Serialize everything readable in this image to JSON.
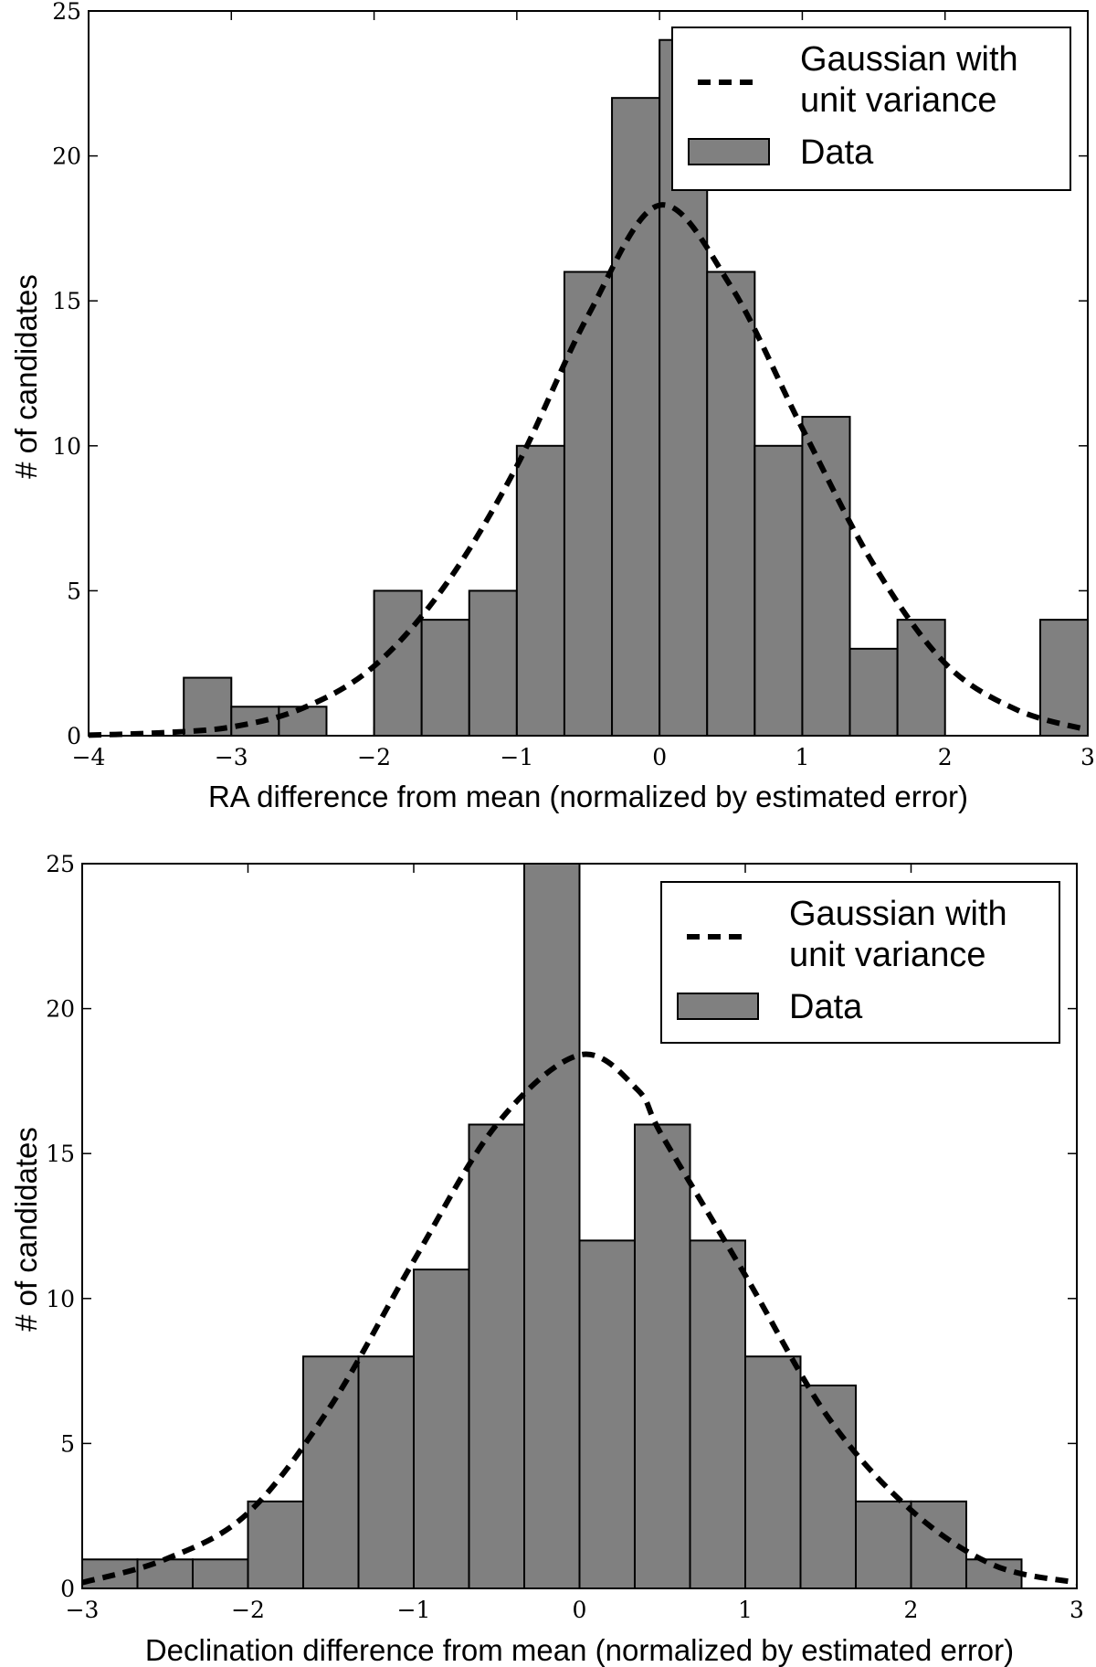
{
  "chart_data": [
    {
      "type": "bar",
      "bin_edges": [
        -4,
        -3.6667,
        -3.3333,
        -3,
        -2.6667,
        -2.3333,
        -2,
        -1.6667,
        -1.3333,
        -1,
        -0.6667,
        -0.3333,
        0,
        0.3333,
        0.6667,
        1,
        1.3333,
        1.6667,
        2,
        2.3333,
        2.6667,
        3
      ],
      "values": [
        0,
        0,
        2,
        1,
        1,
        0,
        5,
        4,
        5,
        10,
        16,
        22,
        24,
        16,
        10,
        11,
        3,
        4,
        0,
        0,
        4
      ],
      "gaussian_x": [
        -4,
        -3.5,
        -3,
        -2.5,
        -2,
        -1.5,
        -1,
        -0.5,
        0,
        0.5,
        1,
        1.5,
        2,
        2.5,
        3
      ],
      "gaussian_y": [
        0.02,
        0.1,
        0.3,
        0.95,
        2.4,
        5.2,
        9.3,
        14.5,
        18.3,
        15.5,
        10.6,
        5.9,
        2.5,
        0.9,
        0.2
      ],
      "xlim": [
        -4,
        3
      ],
      "ylim": [
        0,
        25
      ],
      "xticks": [
        -4,
        -3,
        -2,
        -1,
        0,
        1,
        2,
        3
      ],
      "xtick_labels": [
        "−4",
        "−3",
        "−2",
        "−1",
        "0",
        "1",
        "2",
        "3"
      ],
      "yticks": [
        0,
        5,
        10,
        15,
        20,
        25
      ],
      "ytick_labels": [
        "0",
        "5",
        "10",
        "15",
        "20",
        "25"
      ],
      "xlabel": "RA difference from mean (normalized by estimated error)",
      "ylabel": "# of candidates",
      "legend": {
        "position": "top-right",
        "gaussian_line1": "Gaussian with",
        "gaussian_line2": "unit variance",
        "data": "Data"
      }
    },
    {
      "type": "bar",
      "bin_edges": [
        -3,
        -2.6667,
        -2.3333,
        -2,
        -1.6667,
        -1.3333,
        -1,
        -0.6667,
        -0.3333,
        0,
        0.3333,
        0.6667,
        1,
        1.3333,
        1.6667,
        2,
        2.3333,
        2.6667,
        3
      ],
      "values": [
        1,
        1,
        1,
        3,
        8,
        8,
        11,
        16,
        25,
        12,
        16,
        12,
        8,
        7,
        3,
        3,
        1,
        0
      ],
      "gaussian_x": [
        -3,
        -2.5,
        -2,
        -1.5,
        -1,
        -0.5,
        0,
        0.35,
        0.5,
        1,
        1.5,
        2,
        2.5,
        3
      ],
      "gaussian_y": [
        0.2,
        1,
        2.6,
        6.3,
        11.3,
        16,
        18.4,
        17.2,
        15.6,
        10.8,
        5.9,
        2.7,
        0.8,
        0.2
      ],
      "xlim": [
        -3,
        3
      ],
      "ylim": [
        0,
        25
      ],
      "xticks": [
        -3,
        -2,
        -1,
        0,
        1,
        2,
        3
      ],
      "xtick_labels": [
        "−3",
        "−2",
        "−1",
        "0",
        "1",
        "2",
        "3"
      ],
      "yticks": [
        0,
        5,
        10,
        15,
        20,
        25
      ],
      "ytick_labels": [
        "0",
        "5",
        "10",
        "15",
        "20",
        "25"
      ],
      "xlabel": "Declination difference from mean (normalized by estimated error)",
      "ylabel": "# of candidates",
      "legend": {
        "position": "top-right",
        "gaussian_line1": "Gaussian with",
        "gaussian_line2": "unit variance",
        "data": "Data"
      }
    }
  ]
}
